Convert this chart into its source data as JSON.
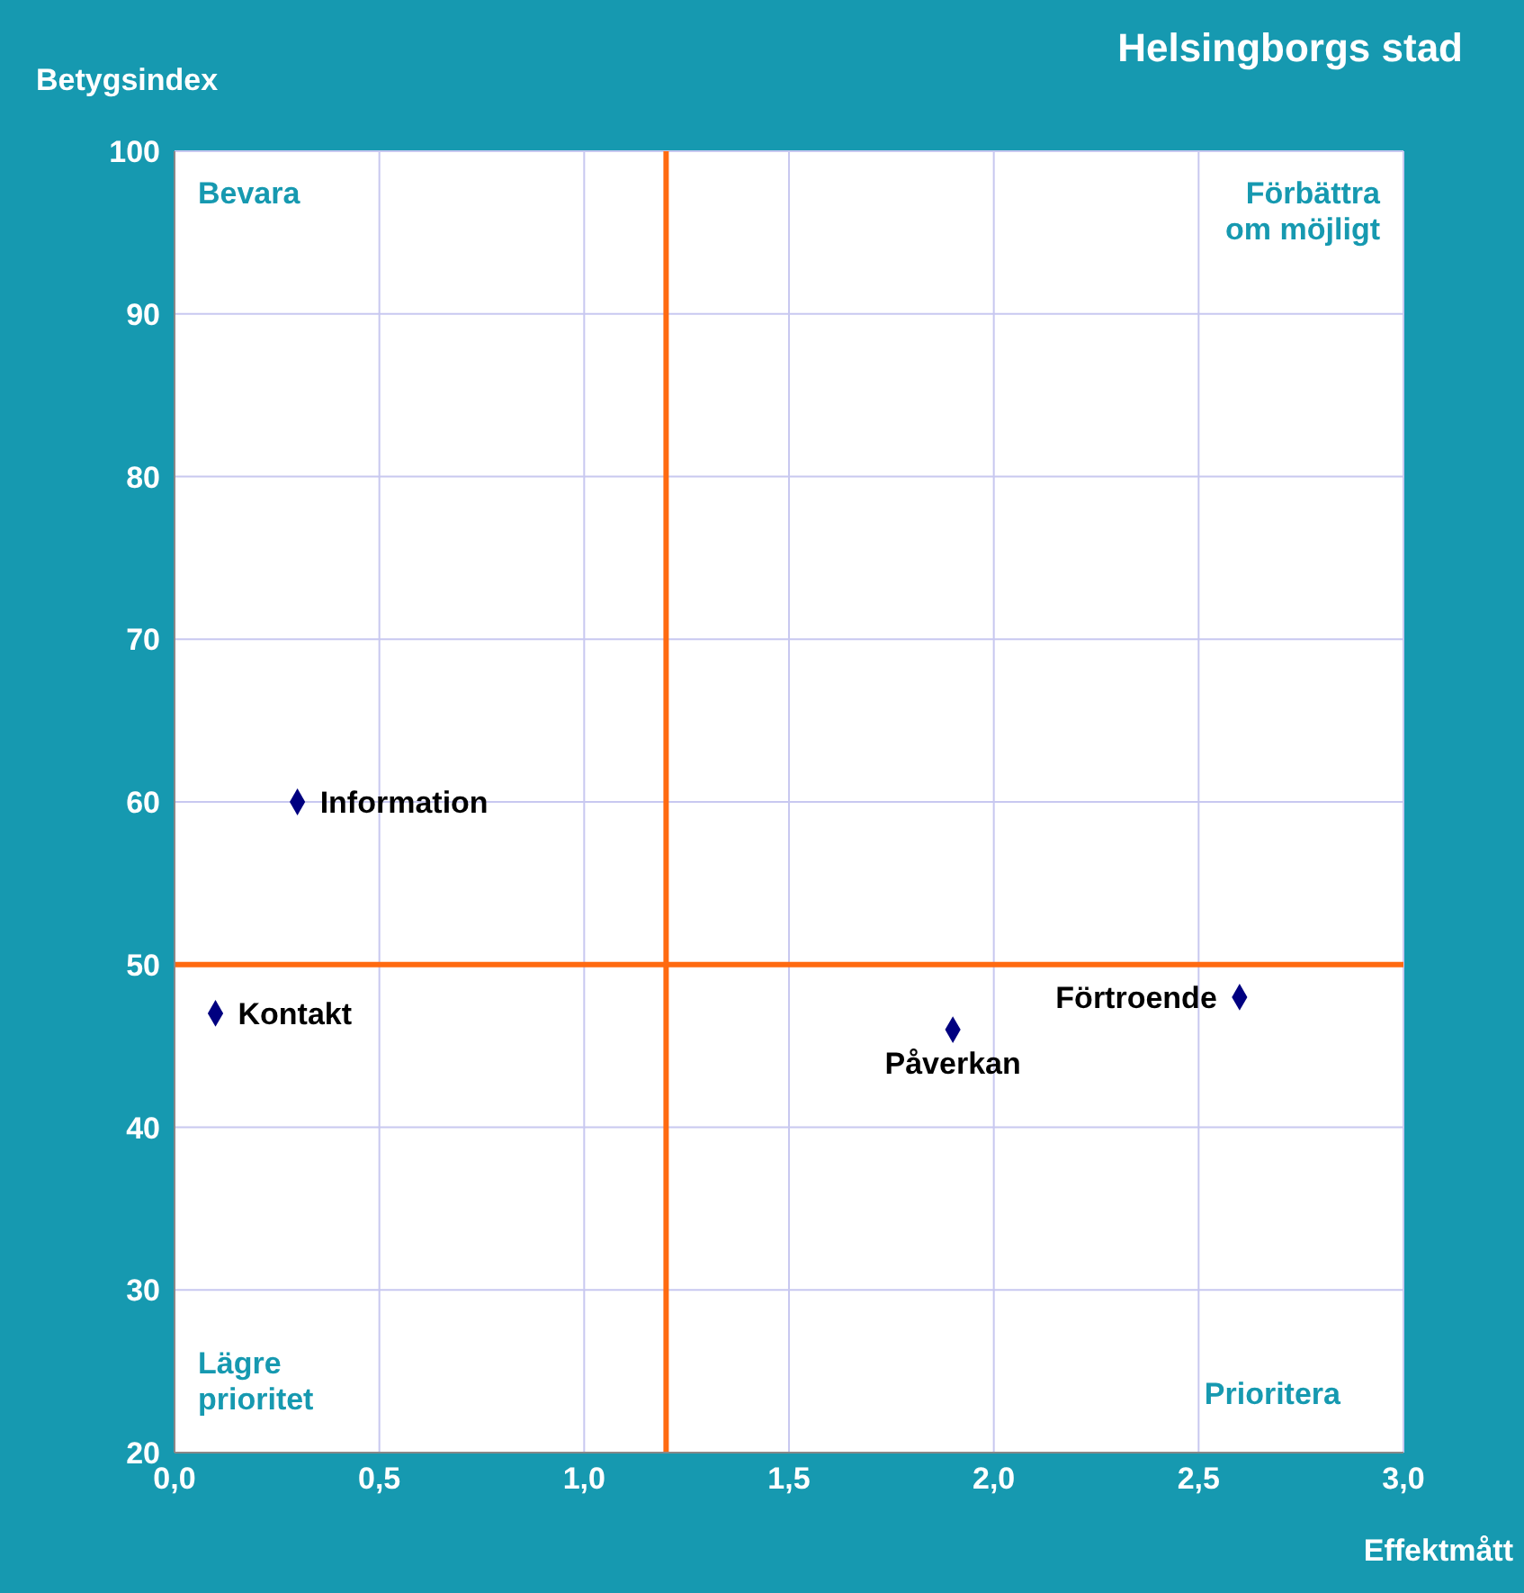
{
  "chart_data": {
    "type": "scatter",
    "title": "Helsingborgs stad",
    "xlabel": "Effektmått",
    "ylabel": "Betygsindex",
    "series": [
      {
        "name": "Information",
        "color": "#000080",
        "x": [
          0.3
        ],
        "values": [
          60
        ]
      },
      {
        "name": "Kontakt",
        "color": "#000080",
        "x": [
          0.1
        ],
        "values": [
          47
        ]
      },
      {
        "name": "Påverkan",
        "color": "#000080",
        "x": [
          1.9
        ],
        "values": [
          46
        ]
      },
      {
        "name": "Förtroende",
        "color": "#000080",
        "x": [
          2.6
        ],
        "values": [
          48
        ]
      }
    ],
    "xlim": [
      0,
      3
    ],
    "xticks": [
      {
        "value": 0,
        "label": "0,0"
      },
      {
        "value": 0.5,
        "label": "0,5"
      },
      {
        "value": 1,
        "label": "1,0"
      },
      {
        "value": 1.5,
        "label": "1,5"
      },
      {
        "value": 2,
        "label": "2,0"
      },
      {
        "value": 2.5,
        "label": "2,5"
      },
      {
        "value": 3,
        "label": "3,0"
      }
    ],
    "ylim": [
      20,
      100
    ],
    "yticks": [
      20,
      30,
      40,
      50,
      60,
      70,
      80,
      90,
      100
    ],
    "ref_lines": [
      {
        "axis": "x",
        "value": 1.2,
        "color": "#ff6a10"
      },
      {
        "axis": "y",
        "value": 50,
        "color": "#ff6a10"
      }
    ],
    "annotations": [
      "Bevara",
      "Förbättra\nom möjligt",
      "Lägre\nprioritet",
      "Prioritera"
    ],
    "grid": true,
    "marker": "diamond"
  }
}
